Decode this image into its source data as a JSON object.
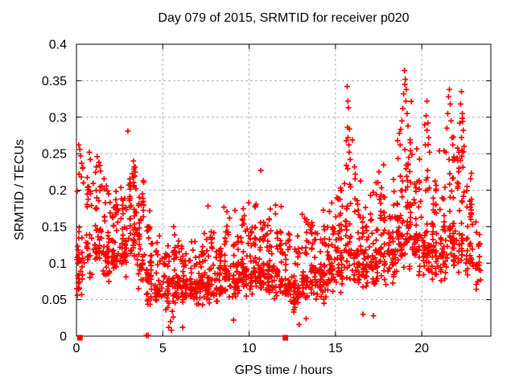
{
  "figure": {
    "background": "#ffffff",
    "text_color": "#000000"
  },
  "chart_data": {
    "type": "scatter",
    "title": "Day 079 of 2015, SRMTID for receiver p020",
    "xlabel": "GPS time / hours",
    "ylabel": "SRMTID / TECUs",
    "xlim": [
      0,
      24
    ],
    "ylim": [
      0,
      0.4
    ],
    "xticks": [
      0,
      5,
      10,
      15,
      20
    ],
    "xtick_labels": [
      "0",
      "5",
      "10",
      "15",
      "20"
    ],
    "yticks": [
      0,
      0.05,
      0.1,
      0.15,
      0.2,
      0.25,
      0.3,
      0.35,
      0.4
    ],
    "ytick_labels": [
      "0",
      "0.05",
      "0.1",
      "0.15",
      "0.2",
      "0.25",
      "0.3",
      "0.35",
      "0.4"
    ],
    "grid": true,
    "legend": "none",
    "seed": 79,
    "marker": {
      "symbol": "plus",
      "color": "#ff0000",
      "size": 7
    },
    "style": {
      "grid_color": "#aaaaaa",
      "grid_dash": "3,3",
      "axis_color": "#000000",
      "tick_length": 6
    },
    "density_profile": {
      "comment": "dense scatter approximated per 0.5h bin",
      "columns": [
        "hour_start",
        "count",
        "y_min",
        "y_core_max",
        "y_tail_max"
      ],
      "bins": [
        [
          0.0,
          22,
          0.06,
          0.14,
          0.26
        ],
        [
          0.5,
          30,
          0.07,
          0.16,
          0.25
        ],
        [
          1.0,
          40,
          0.08,
          0.17,
          0.25
        ],
        [
          1.5,
          40,
          0.07,
          0.16,
          0.23
        ],
        [
          2.0,
          38,
          0.07,
          0.15,
          0.21
        ],
        [
          2.5,
          38,
          0.08,
          0.16,
          0.22
        ],
        [
          3.0,
          45,
          0.09,
          0.2,
          0.27
        ],
        [
          3.5,
          42,
          0.06,
          0.17,
          0.23
        ],
        [
          4.0,
          40,
          0.04,
          0.12,
          0.18
        ],
        [
          4.5,
          30,
          0.03,
          0.09,
          0.15
        ],
        [
          5.0,
          35,
          0.03,
          0.09,
          0.14
        ],
        [
          5.5,
          40,
          0.04,
          0.1,
          0.18
        ],
        [
          6.0,
          40,
          0.04,
          0.09,
          0.14
        ],
        [
          6.5,
          38,
          0.04,
          0.09,
          0.13
        ],
        [
          7.0,
          40,
          0.04,
          0.1,
          0.17
        ],
        [
          7.5,
          40,
          0.04,
          0.1,
          0.19
        ],
        [
          8.0,
          40,
          0.04,
          0.1,
          0.16
        ],
        [
          8.5,
          40,
          0.05,
          0.11,
          0.18
        ],
        [
          9.0,
          42,
          0.05,
          0.11,
          0.18
        ],
        [
          9.5,
          42,
          0.05,
          0.12,
          0.2
        ],
        [
          10.0,
          42,
          0.05,
          0.12,
          0.19
        ],
        [
          10.5,
          44,
          0.05,
          0.12,
          0.2
        ],
        [
          11.0,
          42,
          0.05,
          0.11,
          0.19
        ],
        [
          11.5,
          40,
          0.04,
          0.11,
          0.18
        ],
        [
          12.0,
          40,
          0.04,
          0.1,
          0.16
        ],
        [
          12.5,
          38,
          0.03,
          0.09,
          0.15
        ],
        [
          13.0,
          40,
          0.04,
          0.1,
          0.17
        ],
        [
          13.5,
          42,
          0.04,
          0.11,
          0.19
        ],
        [
          14.0,
          42,
          0.04,
          0.11,
          0.2
        ],
        [
          14.5,
          42,
          0.05,
          0.12,
          0.19
        ],
        [
          15.0,
          44,
          0.05,
          0.13,
          0.22
        ],
        [
          15.5,
          40,
          0.07,
          0.17,
          0.3
        ],
        [
          16.0,
          42,
          0.06,
          0.15,
          0.24
        ],
        [
          16.5,
          40,
          0.06,
          0.13,
          0.2
        ],
        [
          17.0,
          40,
          0.06,
          0.14,
          0.22
        ],
        [
          17.5,
          40,
          0.06,
          0.15,
          0.24
        ],
        [
          18.0,
          42,
          0.07,
          0.16,
          0.27
        ],
        [
          18.5,
          44,
          0.08,
          0.18,
          0.3
        ],
        [
          19.0,
          46,
          0.08,
          0.2,
          0.34
        ],
        [
          19.5,
          42,
          0.08,
          0.17,
          0.26
        ],
        [
          20.0,
          42,
          0.08,
          0.17,
          0.3
        ],
        [
          20.5,
          40,
          0.07,
          0.15,
          0.23
        ],
        [
          21.0,
          40,
          0.07,
          0.16,
          0.28
        ],
        [
          21.5,
          42,
          0.08,
          0.18,
          0.32
        ],
        [
          22.0,
          40,
          0.07,
          0.17,
          0.3
        ],
        [
          22.5,
          38,
          0.07,
          0.15,
          0.24
        ],
        [
          23.0,
          20,
          0.06,
          0.12,
          0.17
        ]
      ]
    },
    "highlight_points": [
      [
        0.07,
        0.123
      ],
      [
        0.1,
        0.118
      ],
      [
        0.12,
        0.112
      ],
      [
        0.05,
        0.108
      ],
      [
        0.03,
        0.105
      ],
      [
        0.08,
        0.1
      ],
      [
        0.02,
        0.065
      ],
      [
        0.07,
        0.065
      ],
      [
        0.12,
        0.064
      ],
      [
        0.17,
        0.066
      ],
      [
        0.05,
        0.056
      ],
      [
        0.3,
        0.057
      ],
      [
        0.13,
        0.262
      ],
      [
        0.2,
        0.256
      ],
      [
        0.24,
        0.247
      ],
      [
        0.3,
        0.237
      ],
      [
        0.36,
        0.23
      ],
      [
        0.15,
        0.222
      ],
      [
        0.28,
        0.218
      ],
      [
        0.4,
        0.21
      ],
      [
        0.75,
        0.252
      ],
      [
        0.8,
        0.242
      ],
      [
        1.2,
        0.246
      ],
      [
        1.3,
        0.238
      ],
      [
        1.15,
        0.232
      ],
      [
        2.98,
        0.281
      ],
      [
        3.3,
        0.24
      ],
      [
        3.35,
        0.232
      ],
      [
        3.4,
        0.225
      ],
      [
        10.68,
        0.227
      ],
      [
        15.68,
        0.342
      ],
      [
        15.72,
        0.322
      ],
      [
        15.75,
        0.313
      ],
      [
        15.7,
        0.286
      ],
      [
        15.73,
        0.272
      ],
      [
        15.78,
        0.262
      ],
      [
        15.8,
        0.252
      ],
      [
        15.85,
        0.242
      ],
      [
        16.1,
        0.232
      ],
      [
        16.15,
        0.222
      ],
      [
        18.6,
        0.268
      ],
      [
        18.7,
        0.278
      ],
      [
        18.75,
        0.262
      ],
      [
        18.85,
        0.295
      ],
      [
        18.9,
        0.312
      ],
      [
        18.95,
        0.332
      ],
      [
        19.0,
        0.364
      ],
      [
        19.02,
        0.345
      ],
      [
        19.05,
        0.352
      ],
      [
        19.08,
        0.322
      ],
      [
        19.1,
        0.338
      ],
      [
        19.15,
        0.305
      ],
      [
        19.2,
        0.288
      ],
      [
        20.2,
        0.262
      ],
      [
        20.25,
        0.302
      ],
      [
        20.3,
        0.322
      ],
      [
        20.3,
        0.282
      ],
      [
        20.35,
        0.292
      ],
      [
        20.4,
        0.272
      ],
      [
        20.45,
        0.252
      ],
      [
        21.4,
        0.252
      ],
      [
        21.45,
        0.285
      ],
      [
        21.5,
        0.305
      ],
      [
        21.55,
        0.328
      ],
      [
        21.6,
        0.338
      ],
      [
        21.65,
        0.318
      ],
      [
        21.7,
        0.295
      ],
      [
        21.75,
        0.272
      ],
      [
        21.8,
        0.262
      ],
      [
        21.9,
        0.242
      ],
      [
        22.15,
        0.252
      ],
      [
        22.2,
        0.292
      ],
      [
        22.25,
        0.318
      ],
      [
        22.3,
        0.335
      ],
      [
        22.3,
        0.272
      ],
      [
        22.35,
        0.305
      ],
      [
        22.4,
        0.282
      ],
      [
        22.45,
        0.26
      ],
      [
        5.35,
        0.012
      ],
      [
        5.45,
        0.02
      ],
      [
        5.5,
        0.008
      ],
      [
        5.6,
        0.026
      ],
      [
        5.55,
        0.034
      ],
      [
        6.15,
        0.012
      ],
      [
        9.1,
        0.022
      ],
      [
        12.9,
        0.016
      ],
      [
        13.3,
        0.024
      ],
      [
        16.6,
        0.03
      ],
      [
        17.2,
        0.028
      ]
    ],
    "zero_markers": {
      "squares": [
        [
          0.2,
          0
        ],
        [
          12.1,
          0
        ]
      ],
      "plusses": [
        [
          4.05,
          0.001
        ],
        [
          4.15,
          0.001
        ]
      ]
    }
  }
}
